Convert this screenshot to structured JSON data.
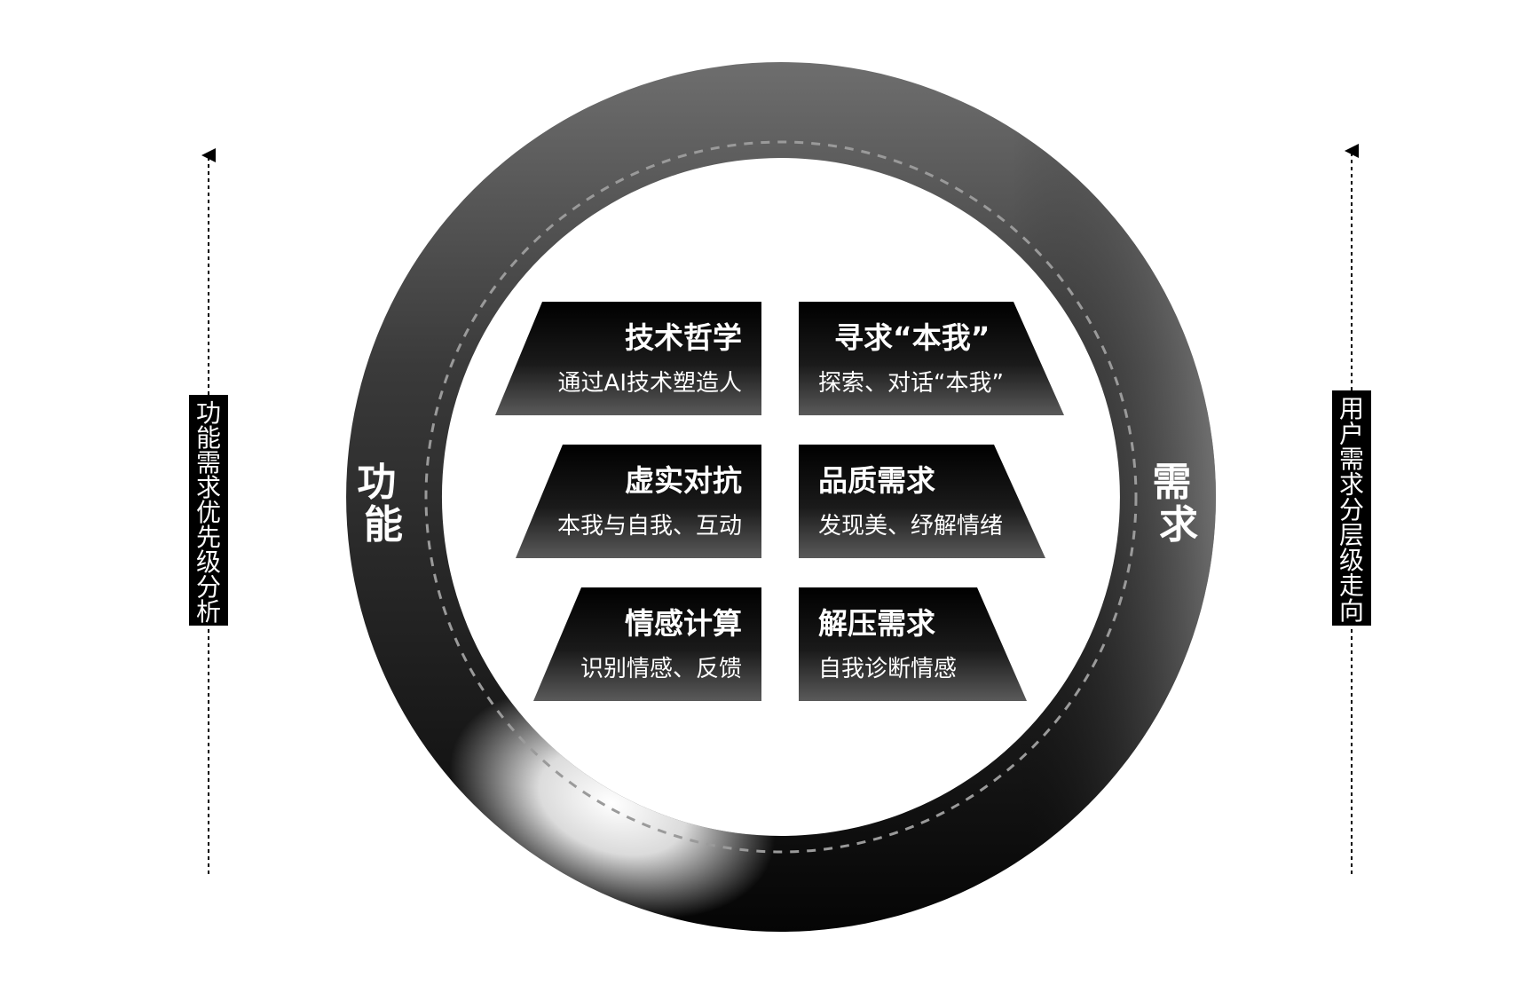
{
  "ring": {
    "left_label": "功能",
    "right_label": "需求"
  },
  "side_labels": {
    "left": "功能需求优先级分析",
    "right": "用户需求分层级走向"
  },
  "cards": [
    {
      "title": "技术哲学",
      "subtitle": "通过AI技术塑造人"
    },
    {
      "title": "寻求“本我”",
      "subtitle": "探索、对话“本我”"
    },
    {
      "title": "虚实对抗",
      "subtitle": "本我与自我、互动"
    },
    {
      "title": "品质需求",
      "subtitle": "发现美、纾解情绪"
    },
    {
      "title": "情感计算",
      "subtitle": "识别情感、反馈"
    },
    {
      "title": "解压需求",
      "subtitle": "自我诊断情感"
    }
  ]
}
